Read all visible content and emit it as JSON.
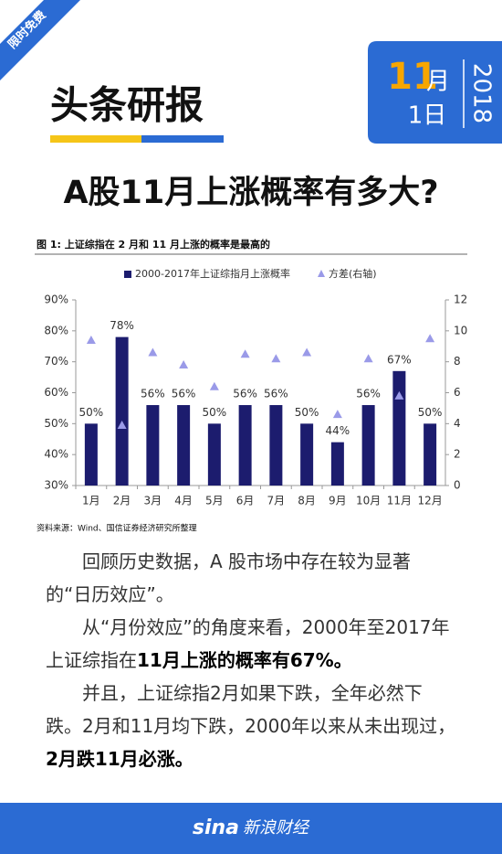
{
  "ribbon": "限时免费",
  "brand": "头条研报",
  "date": {
    "month": "11",
    "month_unit": "月",
    "day": "1日",
    "year": "2018"
  },
  "headline": "A股11月上涨概率有多大?",
  "chart_data": {
    "type": "bar",
    "title": "图 1: 上证综指在 2 月和 11 月上涨的概率是最高的",
    "categories": [
      "1月",
      "2月",
      "3月",
      "4月",
      "5月",
      "6月",
      "7月",
      "8月",
      "9月",
      "10月",
      "11月",
      "12月"
    ],
    "series": [
      {
        "name": "2000-2017年上证综指月上涨概率",
        "color": "#1c1c6e",
        "values": [
          50,
          78,
          56,
          56,
          50,
          56,
          56,
          50,
          44,
          56,
          67,
          50
        ],
        "value_labels": [
          "50%",
          "78%",
          "56%",
          "56%",
          "50%",
          "56%",
          "56%",
          "50%",
          "44%",
          "56%",
          "67%",
          "50%"
        ]
      },
      {
        "name": "方差(右轴)",
        "color": "#9a9ae8",
        "type": "scatter",
        "axis": "y2",
        "values": [
          9.4,
          3.9,
          8.6,
          7.8,
          6.4,
          8.5,
          8.2,
          8.6,
          4.6,
          8.2,
          5.8,
          9.5
        ]
      }
    ],
    "ylim": [
      30,
      90
    ],
    "yticks": [
      {
        "value": 30,
        "label": "30%"
      },
      {
        "value": 40,
        "label": "40%"
      },
      {
        "value": 50,
        "label": "50%"
      },
      {
        "value": 60,
        "label": "60%"
      },
      {
        "value": 70,
        "label": "70%"
      },
      {
        "value": 80,
        "label": "80%"
      },
      {
        "value": 90,
        "label": "90%"
      }
    ],
    "y2lim": [
      0,
      12
    ],
    "y2ticks": [
      0,
      2,
      4,
      6,
      8,
      10,
      12
    ],
    "source": "资料来源：Wind、国信证券经济研究所整理"
  },
  "body": [
    {
      "text": "回顾历史数据，A 股市场中存在较为显著的“日历效应”。"
    },
    {
      "text": "从“月份效应”的角度来看，2000年至2017年上证综指在",
      "strong": "11月上涨的概率有67%。"
    },
    {
      "text": "并且，上证综指2月如果下跌，全年必然下跌。2月和11月均下跌，2000年以来从未出现过，",
      "strong": "2月跌11月必涨。"
    }
  ],
  "footer": {
    "logo": "sina",
    "name": "新浪财经"
  }
}
